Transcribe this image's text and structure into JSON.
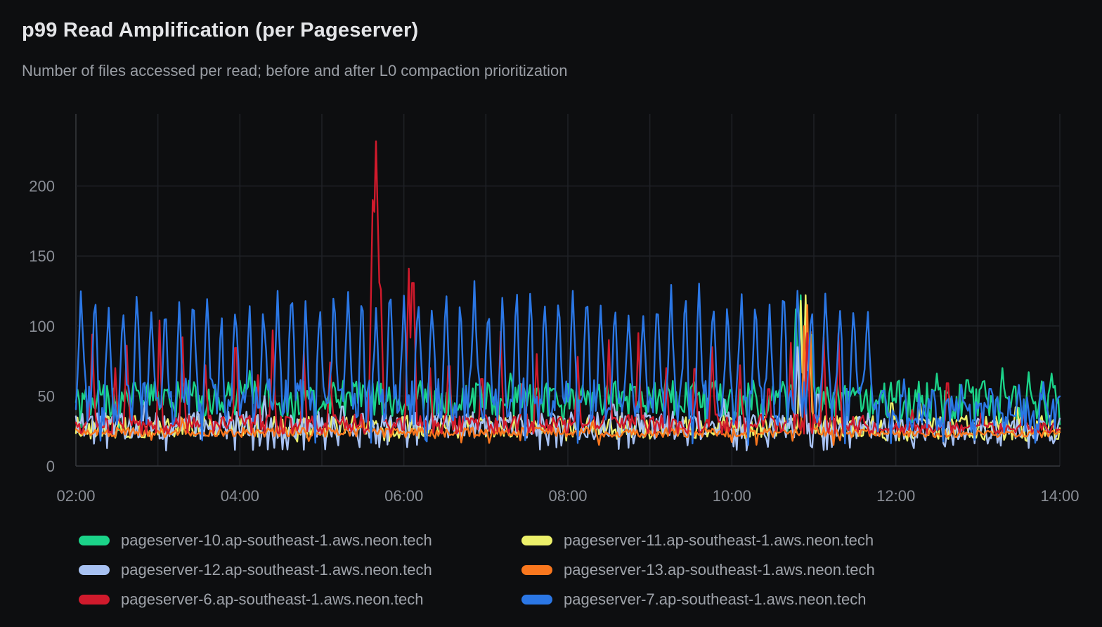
{
  "chart_data": {
    "type": "line",
    "title": "p99 Read Amplification (per Pageserver)",
    "subtitle": "Number of files accessed per read; before and after L0 compaction prioritization",
    "legend_position": "bottom",
    "grid": true,
    "x_axis": {
      "min_hour": 2,
      "max_hour": 14,
      "tick_hours": [
        2,
        4,
        6,
        8,
        10,
        12,
        14
      ],
      "tick_labels": [
        "02:00",
        "04:00",
        "06:00",
        "08:00",
        "10:00",
        "12:00",
        "14:00"
      ],
      "gridline_every_hours": 1
    },
    "y_axis": {
      "min": 0,
      "max": 250,
      "ticks": [
        0,
        50,
        100,
        150,
        200
      ],
      "tick_labels": [
        "0",
        "50",
        "100",
        "150",
        "200"
      ]
    },
    "transition_hour": 11.67,
    "sample_step_hours": 0.02,
    "default_spike_width": 0.035,
    "series": [
      {
        "name": "pageserver-10.ap-southeast-1.aws.neon.tech",
        "color": "#1bd389",
        "seed": 3,
        "before": {
          "base": 48,
          "amp": 13,
          "floor": 25,
          "dip_chance": 0.02
        },
        "after": {
          "base": 45,
          "amp": 16,
          "floor": 22,
          "dip_chance": 0.02
        },
        "spikes": [
          [
            4.12,
            68
          ],
          [
            7.3,
            66
          ],
          [
            9.2,
            66
          ],
          [
            10.78,
            112
          ],
          [
            10.84,
            122
          ],
          [
            10.9,
            118
          ],
          [
            10.97,
            112
          ],
          [
            12.5,
            66
          ],
          [
            12.87,
            68
          ],
          [
            13.3,
            70
          ],
          [
            13.62,
            67
          ],
          [
            13.9,
            66
          ]
        ]
      },
      {
        "name": "pageserver-11.ap-southeast-1.aws.neon.tech",
        "color": "#ecf06a",
        "seed": 7,
        "before": {
          "base": 28,
          "amp": 8,
          "floor": 17,
          "dip_chance": 0.03
        },
        "after": {
          "base": 27,
          "amp": 9,
          "floor": 16,
          "dip_chance": 0.03
        },
        "spikes": [
          [
            10.84,
            118
          ],
          [
            10.9,
            122
          ],
          [
            10.95,
            104
          ],
          [
            11.95,
            52
          ],
          [
            12.3,
            44
          ],
          [
            13.47,
            48
          ]
        ]
      },
      {
        "name": "pageserver-12.ap-southeast-1.aws.neon.tech",
        "color": "#a7c1f2",
        "seed": 11,
        "before": {
          "base": 29,
          "amp": 10,
          "floor": 11,
          "dip_chance": 0.08
        },
        "after": {
          "base": 26,
          "amp": 8,
          "floor": 12,
          "dip_chance": 0.08
        },
        "spikes": [
          [
            2.85,
            52
          ],
          [
            4.3,
            50
          ],
          [
            5.25,
            48
          ],
          [
            8.55,
            50
          ],
          [
            9.9,
            48
          ],
          [
            10.8,
            85
          ],
          [
            10.88,
            78
          ],
          [
            11.05,
            60
          ]
        ]
      },
      {
        "name": "pageserver-13.ap-southeast-1.aws.neon.tech",
        "color": "#f9771e",
        "seed": 5,
        "before": {
          "base": 24,
          "amp": 3.5,
          "floor": 15,
          "dip_chance": 0.02
        },
        "after": {
          "base": 23,
          "amp": 2.5,
          "floor": 18,
          "dip_chance": 0.0
        },
        "spikes": [
          [
            3.3,
            34
          ],
          [
            5.5,
            33
          ],
          [
            8.3,
            32
          ],
          [
            10.88,
            100,
            0.03
          ],
          [
            10.92,
            115,
            0.03
          ],
          [
            10.96,
            96,
            0.03
          ]
        ]
      },
      {
        "name": "pageserver-6.ap-southeast-1.aws.neon.tech",
        "color": "#d01a2c",
        "seed": 13,
        "before": {
          "base": 30,
          "amp": 7,
          "floor": 20,
          "dip_chance": 0.0
        },
        "after": {
          "base": 27,
          "amp": 4,
          "floor": 20,
          "dip_chance": 0.0
        },
        "spikes": [
          [
            2.2,
            94
          ],
          [
            2.48,
            70
          ],
          [
            2.62,
            86
          ],
          [
            3.02,
            104
          ],
          [
            3.3,
            92
          ],
          [
            3.58,
            72
          ],
          [
            3.95,
            106
          ],
          [
            4.22,
            65
          ],
          [
            4.4,
            97
          ],
          [
            4.78,
            82
          ],
          [
            5.1,
            74
          ],
          [
            5.62,
            190,
            0.05
          ],
          [
            5.66,
            232,
            0.08
          ],
          [
            5.71,
            150,
            0.05
          ],
          [
            6.06,
            141,
            0.045
          ],
          [
            6.11,
            156,
            0.05
          ],
          [
            6.32,
            70
          ],
          [
            6.55,
            88
          ],
          [
            6.95,
            75
          ],
          [
            7.18,
            96
          ],
          [
            7.45,
            70
          ],
          [
            7.62,
            80
          ],
          [
            8.12,
            78
          ],
          [
            8.5,
            90
          ],
          [
            8.86,
            95
          ],
          [
            9.2,
            70
          ],
          [
            9.55,
            85
          ],
          [
            9.76,
            85
          ],
          [
            10.1,
            72
          ],
          [
            10.45,
            65
          ],
          [
            10.72,
            88
          ],
          [
            10.92,
            95
          ],
          [
            11.12,
            92
          ],
          [
            11.3,
            95
          ],
          [
            12.2,
            40
          ],
          [
            12.63,
            72
          ],
          [
            13.05,
            42
          ],
          [
            13.55,
            40
          ]
        ]
      },
      {
        "name": "pageserver-7.ap-southeast-1.aws.neon.tech",
        "color": "#2b77e5",
        "seed": 2,
        "before": {
          "base": 46,
          "amp": 17,
          "floor": 15,
          "dip_chance": 0.05
        },
        "after": {
          "base": 38,
          "amp": 14,
          "floor": 15,
          "dip_chance": 0.04
        },
        "periodic_spikes": {
          "start": 2.06,
          "period": 0.1714,
          "width": 0.05,
          "min_height": 112,
          "max_height": 136,
          "until": 11.67
        },
        "spikes": [
          [
            11.85,
            60
          ],
          [
            12.1,
            62
          ],
          [
            12.45,
            60
          ],
          [
            12.8,
            58
          ],
          [
            13.15,
            62
          ],
          [
            13.5,
            58
          ],
          [
            13.8,
            60
          ]
        ]
      }
    ]
  },
  "theme": {
    "background": "#0d0e10",
    "gridline": "#1f2126",
    "axis_line": "#36383d",
    "tick_text": "#8b8f97",
    "title_text": "#e4e5e8",
    "subtitle_text": "#9a9ea5",
    "legend_text": "#9fa3aa"
  }
}
